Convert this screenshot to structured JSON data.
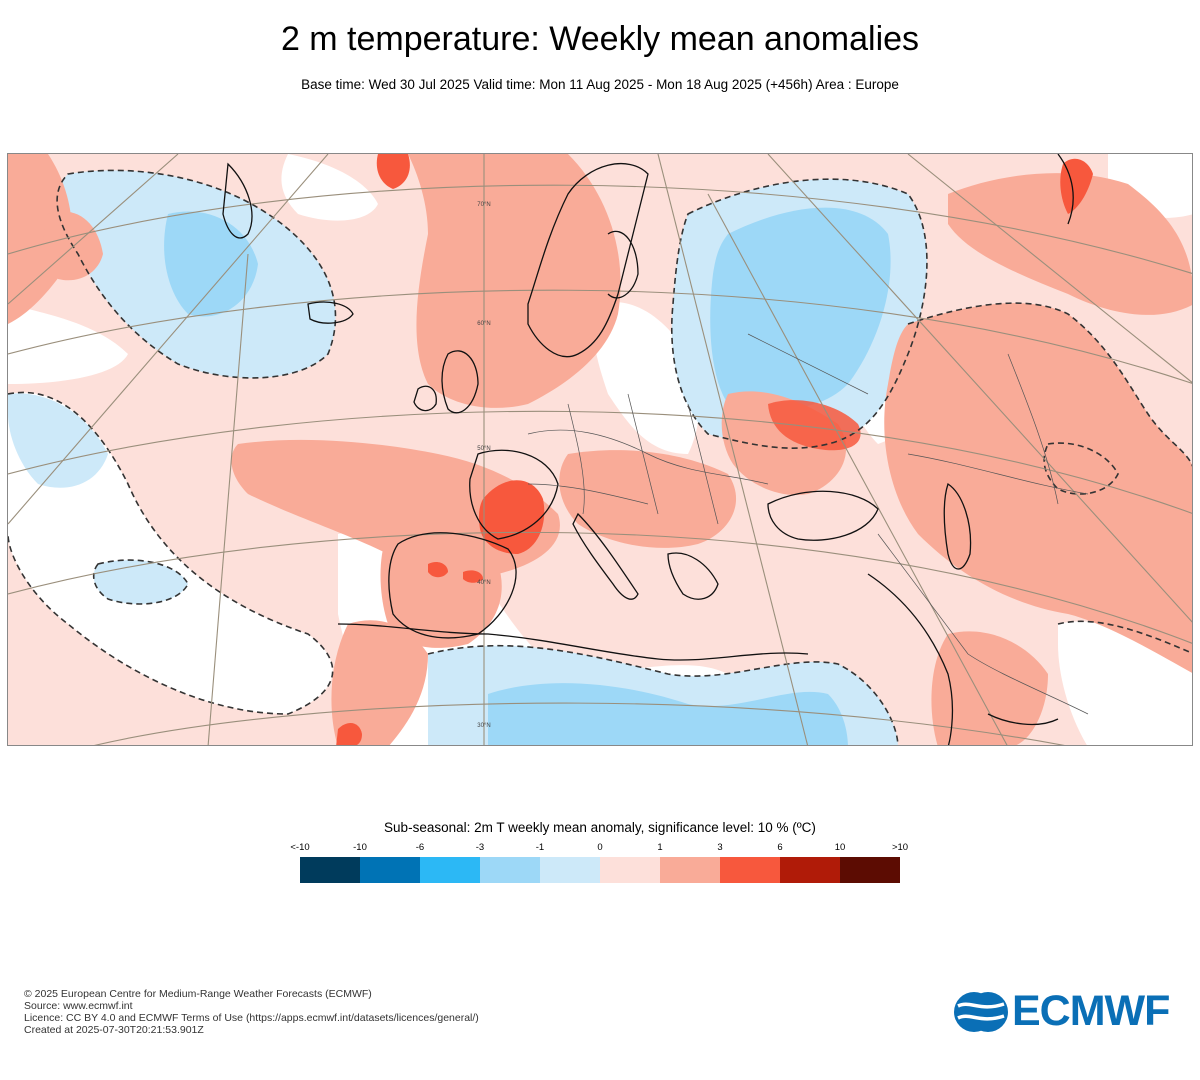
{
  "header": {
    "title": "2 m temperature: Weekly mean anomalies",
    "subtitle": "Base time: Wed 30 Jul 2025 Valid time: Mon 11 Aug 2025 - Mon 18 Aug 2025 (+456h) Area : Europe"
  },
  "map": {
    "region": "Europe",
    "lat_labels": [
      "70°N",
      "60°N",
      "50°N",
      "40°N",
      "30°N"
    ]
  },
  "legend": {
    "title": "Sub-seasonal: 2m T weekly mean anomaly, significance level: 10 % (ºC)",
    "labels": [
      "<-10",
      "-10",
      "-6",
      "-3",
      "-1",
      "0",
      "1",
      "3",
      "6",
      "10",
      ">10"
    ],
    "colors": [
      "#003b5c",
      "#0073b5",
      "#2cb8f5",
      "#9dd8f7",
      "#cde9f9",
      "#fde0da",
      "#f9ab98",
      "#f7583d",
      "#b01b08",
      "#5c0c02"
    ]
  },
  "footer": {
    "lines": [
      "© 2025 European Centre for Medium-Range Weather Forecasts (ECMWF)",
      "Source: www.ecmwf.int",
      "Licence: CC BY 4.0 and ECMWF Terms of Use (https://apps.ecmwf.int/datasets/licences/general/)",
      "Created at 2025-07-30T20:21:53.901Z"
    ]
  },
  "logo": {
    "text": "ECMWF",
    "color": "#0a6fb6"
  }
}
